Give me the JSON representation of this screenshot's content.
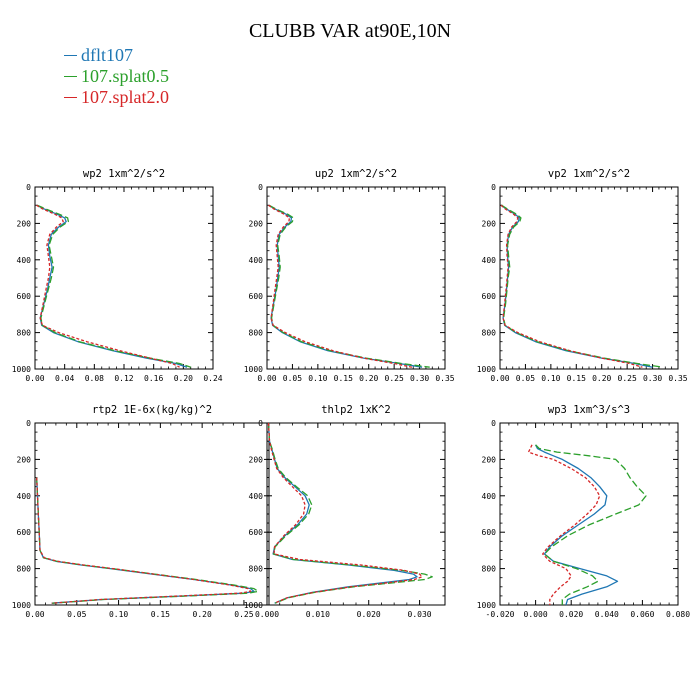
{
  "title": "CLUBB VAR at90E,10N",
  "legend": [
    {
      "name": "dflt107",
      "color": "#1f77b4"
    },
    {
      "name": "107.splat0.5",
      "color": "#2ca02c"
    },
    {
      "name": "107.splat2.0",
      "color": "#d62728"
    }
  ],
  "chart_data": [
    {
      "type": "line",
      "title": "wp2  1xm^2/s^2",
      "xlim": [
        0,
        0.24
      ],
      "xticks": [
        0,
        0.04,
        0.08,
        0.12,
        0.16,
        0.2,
        0.24
      ],
      "xtick_labels": [
        "0.00",
        "0.04",
        "0.08",
        "0.12",
        "0.16",
        "0.20",
        "0.24"
      ],
      "ylim": [
        1000,
        0
      ],
      "yticks": [
        0,
        200,
        400,
        600,
        800,
        1000
      ],
      "y": [
        100,
        120,
        150,
        170,
        190,
        220,
        260,
        320,
        380,
        440,
        500,
        560,
        640,
        720,
        760,
        800,
        850,
        900,
        940,
        970,
        990
      ],
      "series": [
        {
          "name": "dflt107",
          "values": [
            0.002,
            0.012,
            0.03,
            0.04,
            0.042,
            0.032,
            0.022,
            0.018,
            0.02,
            0.023,
            0.02,
            0.017,
            0.012,
            0.007,
            0.009,
            0.025,
            0.058,
            0.105,
            0.15,
            0.19,
            0.205
          ]
        },
        {
          "name": "107.splat0.5",
          "values": [
            0.003,
            0.014,
            0.033,
            0.044,
            0.045,
            0.034,
            0.024,
            0.019,
            0.022,
            0.025,
            0.022,
            0.018,
            0.013,
            0.008,
            0.01,
            0.027,
            0.06,
            0.108,
            0.155,
            0.195,
            0.21
          ]
        },
        {
          "name": "107.splat2.0",
          "values": [
            0.002,
            0.01,
            0.027,
            0.036,
            0.038,
            0.029,
            0.02,
            0.016,
            0.018,
            0.02,
            0.018,
            0.015,
            0.011,
            0.007,
            0.01,
            0.032,
            0.07,
            0.115,
            0.155,
            0.185,
            0.195
          ]
        }
      ]
    },
    {
      "type": "line",
      "title": "up2  1xm^2/s^2",
      "xlim": [
        0,
        0.35
      ],
      "xticks": [
        0,
        0.05,
        0.1,
        0.15,
        0.2,
        0.25,
        0.3,
        0.35
      ],
      "xtick_labels": [
        "0.00",
        "0.05",
        "0.10",
        "0.15",
        "0.20",
        "0.25",
        "0.30",
        "0.35"
      ],
      "ylim": [
        1000,
        0
      ],
      "yticks": [
        0,
        200,
        400,
        600,
        800,
        1000
      ],
      "y": [
        100,
        120,
        150,
        170,
        190,
        220,
        260,
        320,
        380,
        440,
        500,
        560,
        640,
        720,
        760,
        800,
        850,
        900,
        940,
        970,
        990
      ],
      "series": [
        {
          "name": "dflt107",
          "values": [
            0.003,
            0.015,
            0.038,
            0.048,
            0.047,
            0.035,
            0.024,
            0.02,
            0.022,
            0.024,
            0.021,
            0.018,
            0.013,
            0.008,
            0.011,
            0.03,
            0.065,
            0.12,
            0.19,
            0.26,
            0.305
          ]
        },
        {
          "name": "107.splat0.5",
          "values": [
            0.004,
            0.017,
            0.041,
            0.052,
            0.05,
            0.037,
            0.026,
            0.021,
            0.024,
            0.026,
            0.023,
            0.019,
            0.014,
            0.009,
            0.012,
            0.032,
            0.068,
            0.125,
            0.195,
            0.265,
            0.32
          ]
        },
        {
          "name": "107.splat2.0",
          "values": [
            0.003,
            0.013,
            0.034,
            0.044,
            0.043,
            0.032,
            0.022,
            0.018,
            0.02,
            0.022,
            0.019,
            0.016,
            0.012,
            0.008,
            0.012,
            0.036,
            0.075,
            0.13,
            0.19,
            0.25,
            0.285
          ]
        }
      ]
    },
    {
      "type": "line",
      "title": "vp2  1xm^2/s^2",
      "xlim": [
        0,
        0.35
      ],
      "xticks": [
        0,
        0.05,
        0.1,
        0.15,
        0.2,
        0.25,
        0.3,
        0.35
      ],
      "xtick_labels": [
        "0.00",
        "0.05",
        "0.10",
        "0.15",
        "0.20",
        "0.25",
        "0.30",
        "0.35"
      ],
      "ylim": [
        1000,
        0
      ],
      "yticks": [
        0,
        200,
        400,
        600,
        800,
        1000
      ],
      "y": [
        100,
        120,
        150,
        170,
        190,
        220,
        260,
        320,
        380,
        440,
        500,
        560,
        640,
        720,
        760,
        800,
        850,
        900,
        940,
        970,
        990
      ],
      "series": [
        {
          "name": "dflt107",
          "values": [
            0.002,
            0.012,
            0.03,
            0.038,
            0.036,
            0.025,
            0.017,
            0.014,
            0.015,
            0.017,
            0.015,
            0.013,
            0.01,
            0.006,
            0.009,
            0.03,
            0.07,
            0.13,
            0.2,
            0.265,
            0.3
          ]
        },
        {
          "name": "107.splat0.5",
          "values": [
            0.003,
            0.014,
            0.033,
            0.041,
            0.039,
            0.027,
            0.019,
            0.015,
            0.017,
            0.019,
            0.016,
            0.014,
            0.011,
            0.007,
            0.01,
            0.032,
            0.073,
            0.135,
            0.205,
            0.27,
            0.32
          ]
        },
        {
          "name": "107.splat2.0",
          "values": [
            0.002,
            0.01,
            0.027,
            0.035,
            0.033,
            0.023,
            0.016,
            0.013,
            0.014,
            0.016,
            0.014,
            0.012,
            0.009,
            0.006,
            0.01,
            0.035,
            0.078,
            0.138,
            0.2,
            0.255,
            0.28
          ]
        }
      ]
    },
    {
      "type": "line",
      "title": "rtp2  1E-6x(kg/kg)^2",
      "xlim": [
        0,
        0.28
      ],
      "xticks": [
        0,
        0.05,
        0.1,
        0.15,
        0.2,
        0.25
      ],
      "xtick_labels": [
        "0.00",
        "0.05",
        "0.10",
        "0.15",
        "0.20",
        "0.25"
      ],
      "ylim": [
        1000,
        0
      ],
      "yticks": [
        0,
        200,
        400,
        600,
        800,
        1000
      ],
      "y": [
        300,
        400,
        500,
        600,
        700,
        740,
        760,
        780,
        800,
        830,
        860,
        890,
        910,
        925,
        935,
        950,
        970,
        990
      ],
      "series": [
        {
          "name": "dflt107",
          "values": [
            0.002,
            0.003,
            0.004,
            0.005,
            0.006,
            0.01,
            0.025,
            0.055,
            0.09,
            0.14,
            0.19,
            0.235,
            0.258,
            0.262,
            0.25,
            0.18,
            0.08,
            0.02
          ]
        },
        {
          "name": "107.splat0.5",
          "values": [
            0.002,
            0.003,
            0.004,
            0.005,
            0.006,
            0.01,
            0.026,
            0.057,
            0.092,
            0.143,
            0.193,
            0.238,
            0.262,
            0.267,
            0.255,
            0.185,
            0.082,
            0.021
          ]
        },
        {
          "name": "107.splat2.0",
          "values": [
            0.002,
            0.003,
            0.004,
            0.005,
            0.006,
            0.011,
            0.027,
            0.058,
            0.093,
            0.142,
            0.19,
            0.233,
            0.255,
            0.258,
            0.245,
            0.175,
            0.078,
            0.02
          ]
        }
      ]
    },
    {
      "type": "line",
      "title": "thlp2  1xK^2",
      "xlim": [
        0,
        0.035
      ],
      "xticks": [
        0,
        0.01,
        0.02,
        0.03
      ],
      "xtick_labels": [
        "0.000",
        "0.010",
        "0.020",
        "0.030"
      ],
      "ylim": [
        1000,
        0
      ],
      "yticks": [
        0,
        200,
        400,
        600,
        800,
        1000
      ],
      "y": [
        0,
        100,
        150,
        200,
        250,
        300,
        350,
        400,
        450,
        500,
        560,
        620,
        680,
        720,
        750,
        780,
        810,
        830,
        845,
        860,
        880,
        900,
        930,
        960,
        990
      ],
      "series": [
        {
          "name": "dflt107",
          "values": [
            0.0003,
            0.0005,
            0.001,
            0.0015,
            0.002,
            0.0035,
            0.0055,
            0.0075,
            0.0083,
            0.0078,
            0.006,
            0.0035,
            0.0015,
            0.0012,
            0.005,
            0.016,
            0.025,
            0.0288,
            0.0295,
            0.028,
            0.022,
            0.016,
            0.009,
            0.004,
            0.0015
          ]
        },
        {
          "name": "107.splat0.5",
          "values": [
            0.0003,
            0.0005,
            0.0011,
            0.0016,
            0.0022,
            0.0037,
            0.0058,
            0.008,
            0.0088,
            0.0082,
            0.0063,
            0.0037,
            0.0016,
            0.0013,
            0.0052,
            0.0165,
            0.0265,
            0.031,
            0.0325,
            0.031,
            0.024,
            0.017,
            0.0095,
            0.0042,
            0.0016
          ]
        },
        {
          "name": "107.splat2.0",
          "values": [
            0.0003,
            0.0005,
            0.0009,
            0.0014,
            0.0019,
            0.0032,
            0.005,
            0.0068,
            0.0075,
            0.0072,
            0.0056,
            0.0033,
            0.0015,
            0.0014,
            0.0065,
            0.0185,
            0.027,
            0.03,
            0.0305,
            0.029,
            0.023,
            0.0165,
            0.0092,
            0.004,
            0.0015
          ]
        }
      ]
    },
    {
      "type": "line",
      "title": "wp3  1xm^3/s^3",
      "xlim": [
        -0.02,
        0.08
      ],
      "xticks": [
        -0.02,
        0,
        0.02,
        0.04,
        0.06,
        0.08
      ],
      "xtick_labels": [
        "-0.020",
        "0.000",
        "0.020",
        "0.040",
        "0.060",
        "0.080"
      ],
      "ylim": [
        1000,
        0
      ],
      "yticks": [
        0,
        200,
        400,
        600,
        800,
        1000
      ],
      "y": [
        120,
        140,
        160,
        180,
        200,
        250,
        300,
        350,
        400,
        450,
        500,
        560,
        620,
        680,
        720,
        760,
        800,
        840,
        870,
        900,
        940,
        970,
        1000
      ],
      "series": [
        {
          "name": "dflt107",
          "values": [
            0.0,
            0.001,
            0.005,
            0.01,
            0.015,
            0.024,
            0.031,
            0.036,
            0.04,
            0.039,
            0.033,
            0.024,
            0.015,
            0.008,
            0.005,
            0.01,
            0.025,
            0.04,
            0.046,
            0.04,
            0.026,
            0.018,
            0.017
          ]
        },
        {
          "name": "107.splat0.5",
          "values": [
            0.0,
            0.002,
            0.012,
            0.03,
            0.045,
            0.05,
            0.053,
            0.057,
            0.062,
            0.058,
            0.045,
            0.03,
            0.018,
            0.009,
            0.005,
            0.01,
            0.023,
            0.032,
            0.035,
            0.029,
            0.019,
            0.015,
            0.015
          ]
        },
        {
          "name": "107.splat2.0",
          "values": [
            -0.002,
            -0.003,
            -0.004,
            0.002,
            0.01,
            0.02,
            0.028,
            0.033,
            0.036,
            0.034,
            0.029,
            0.022,
            0.014,
            0.007,
            0.004,
            0.008,
            0.017,
            0.02,
            0.018,
            0.014,
            0.01,
            0.008,
            0.008
          ]
        }
      ]
    }
  ]
}
